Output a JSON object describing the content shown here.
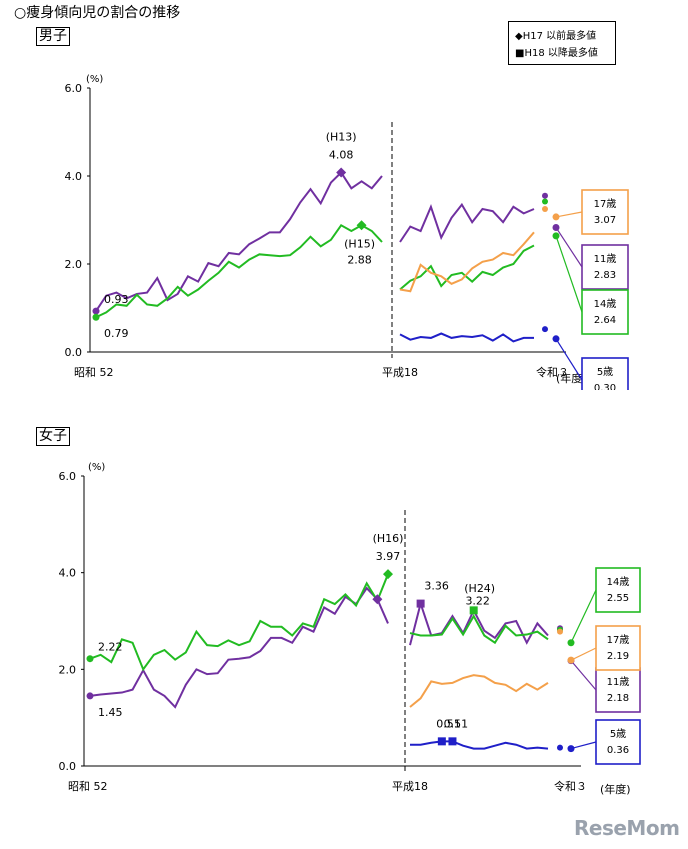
{
  "title": "○痩身傾向児の割合の推移",
  "legend": {
    "diamond_label": "◆H17 以前最多値",
    "square_label": "■H18 以降最多値"
  },
  "colors": {
    "age5": "#1f1fc8",
    "age11": "#7030a0",
    "age14": "#22bb22",
    "age17": "#f4a04a",
    "axis": "#000000"
  },
  "watermark": "ReseMom",
  "chart_data": [
    {
      "type": "line",
      "panel_label": "男子",
      "ylabel": "(%)",
      "xlabel": "(年度)",
      "ylim": [
        0,
        6
      ],
      "y_ticks": [
        "0.0",
        "2.0",
        "4.0",
        "6.0"
      ],
      "x_tick_labels": [
        "昭和 52",
        "平成18",
        "令和３"
      ],
      "series": [
        {
          "name": "11歳",
          "color_key": "age11",
          "before": [
            0.93,
            1.28,
            1.35,
            1.22,
            1.32,
            1.35,
            1.68,
            1.18,
            1.32,
            1.72,
            1.6,
            2.02,
            1.95,
            2.25,
            2.22,
            2.45,
            2.58,
            2.72,
            2.72,
            3.02,
            3.4,
            3.7,
            3.38,
            3.85,
            4.08,
            3.72,
            3.88,
            3.72,
            4.0
          ],
          "after": [
            2.5,
            2.85,
            2.75,
            3.3,
            2.6,
            3.05,
            3.35,
            2.95,
            3.25,
            3.2,
            2.95,
            3.3,
            3.15,
            3.25
          ],
          "final": 2.83,
          "final_label": "2.83",
          "box_label": "11歳"
        },
        {
          "name": "14歳",
          "color_key": "age14",
          "before": [
            0.79,
            0.9,
            1.08,
            1.05,
            1.3,
            1.08,
            1.05,
            1.22,
            1.48,
            1.28,
            1.42,
            1.62,
            1.8,
            2.05,
            1.92,
            2.1,
            2.22,
            2.2,
            2.18,
            2.2,
            2.38,
            2.62,
            2.4,
            2.55,
            2.88,
            2.75,
            2.88,
            2.75,
            2.5
          ],
          "after": [
            1.42,
            1.62,
            1.72,
            1.95,
            1.5,
            1.75,
            1.8,
            1.6,
            1.82,
            1.75,
            1.92,
            2.0,
            2.3,
            2.42
          ],
          "final": 2.64,
          "final_label": "2.64",
          "box_label": "14歳"
        },
        {
          "name": "17歳",
          "color_key": "age17",
          "before": [],
          "after": [
            1.42,
            1.38,
            1.98,
            1.8,
            1.72,
            1.55,
            1.65,
            1.9,
            2.05,
            2.1,
            2.25,
            2.2,
            2.45,
            2.72
          ],
          "final": 3.07,
          "final_label": "3.07",
          "box_label": "17歳"
        },
        {
          "name": "5歳",
          "color_key": "age5",
          "before": [],
          "after": [
            0.4,
            0.28,
            0.34,
            0.32,
            0.42,
            0.32,
            0.36,
            0.34,
            0.38,
            0.26,
            0.4,
            0.24,
            0.32,
            0.32
          ],
          "final": 0.3,
          "final_label": "0.30",
          "box_label": "5歳"
        }
      ],
      "prev_year_points": [
        3.55,
        3.42,
        3.25,
        0.52
      ],
      "annotations": [
        {
          "text": "(H13)",
          "series": "11歳",
          "index": 24
        },
        {
          "text": "4.08",
          "series": "11歳",
          "index": 24
        },
        {
          "text": "(H15)",
          "series": "14歳",
          "index": 26
        },
        {
          "text": "2.88",
          "series": "14歳",
          "index": 26
        },
        {
          "text": "0.93",
          "series": "11歳",
          "index": 0
        },
        {
          "text": "0.79",
          "series": "14歳",
          "index": 0
        }
      ]
    },
    {
      "type": "line",
      "panel_label": "女子",
      "ylabel": "(%)",
      "xlabel": "(年度)",
      "ylim": [
        0,
        6
      ],
      "y_ticks": [
        "0.0",
        "2.0",
        "4.0",
        "6.0"
      ],
      "x_tick_labels": [
        "昭和 52",
        "平成18",
        "令和３"
      ],
      "series": [
        {
          "name": "11歳",
          "color_key": "age11",
          "before": [
            1.45,
            1.48,
            1.5,
            1.52,
            1.58,
            1.98,
            1.58,
            1.45,
            1.22,
            1.68,
            2.0,
            1.9,
            1.92,
            2.2,
            2.22,
            2.25,
            2.38,
            2.65,
            2.65,
            2.55,
            2.88,
            2.78,
            3.28,
            3.15,
            3.5,
            3.35,
            3.68,
            3.45,
            2.95
          ],
          "after": [
            2.5,
            3.36,
            2.7,
            2.75,
            3.1,
            2.75,
            3.22,
            2.8,
            2.65,
            2.95,
            3.0,
            2.55,
            2.95,
            2.7
          ],
          "final": 2.18,
          "final_label": "2.18",
          "box_label": "11歳"
        },
        {
          "name": "14歳",
          "color_key": "age14",
          "before": [
            2.22,
            2.3,
            2.15,
            2.62,
            2.55,
            2.0,
            2.3,
            2.4,
            2.2,
            2.35,
            2.78,
            2.5,
            2.48,
            2.6,
            2.5,
            2.58,
            3.0,
            2.88,
            2.88,
            2.7,
            2.95,
            2.88,
            3.45,
            3.35,
            3.55,
            3.32,
            3.78,
            3.42,
            3.97
          ],
          "after": [
            2.75,
            2.7,
            2.7,
            2.72,
            3.05,
            2.72,
            3.1,
            2.7,
            2.55,
            2.9,
            2.7,
            2.72,
            2.78,
            2.62
          ],
          "final": 2.55,
          "final_label": "2.55",
          "box_label": "14歳"
        },
        {
          "name": "17歳",
          "color_key": "age17",
          "before": [],
          "after": [
            1.22,
            1.4,
            1.75,
            1.7,
            1.72,
            1.82,
            1.88,
            1.85,
            1.72,
            1.68,
            1.55,
            1.7,
            1.58,
            1.72
          ],
          "final": 2.19,
          "final_label": "2.19",
          "box_label": "17歳"
        },
        {
          "name": "5歳",
          "color_key": "age5",
          "before": [],
          "after": [
            0.44,
            0.44,
            0.48,
            0.51,
            0.51,
            0.42,
            0.36,
            0.36,
            0.42,
            0.48,
            0.44,
            0.36,
            0.38,
            0.36
          ],
          "final": 0.36,
          "final_label": "0.36",
          "box_label": "5歳"
        }
      ],
      "prev_year_points": [
        2.85,
        2.82,
        2.78,
        0.38
      ],
      "annotations": [
        {
          "text": "(H16)",
          "series": "14歳",
          "index": 28
        },
        {
          "text": "3.97",
          "series": "14歳",
          "index": 28
        },
        {
          "text": "3.36",
          "series": "11歳",
          "index": 1
        },
        {
          "text": "(H24)",
          "series": "14歳",
          "index": 6
        },
        {
          "text": "3.22",
          "series": "11歳",
          "index": 6
        },
        {
          "text": "0.51",
          "series": "5歳",
          "index": 3
        },
        {
          "text": "0.51",
          "series": "5歳",
          "index": 4
        },
        {
          "text": "2.22",
          "series": "14歳",
          "index": 0
        },
        {
          "text": "1.45",
          "series": "11歳",
          "index": 0
        }
      ]
    }
  ]
}
